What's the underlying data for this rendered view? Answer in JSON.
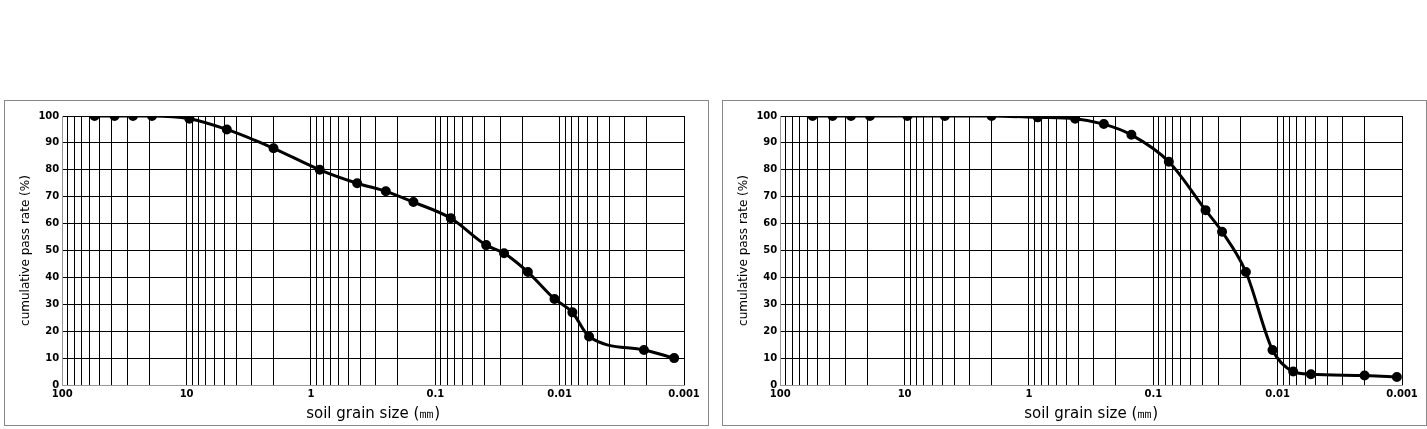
{
  "chart_data": [
    {
      "type": "line",
      "xlabel": "soil grain size (㎜)",
      "ylabel": "cumulative pass rate (%)",
      "log": "x",
      "grid": true,
      "legend": false,
      "marker": "circle",
      "line_style": "solid",
      "xlim": [
        100,
        0.001
      ],
      "ylim": [
        0,
        100
      ],
      "xticks": [
        100,
        {
          "value": 90,
          "label": null
        },
        {
          "value": 80,
          "label": null
        },
        {
          "value": 70,
          "label": null
        },
        {
          "value": 60,
          "label": null
        },
        {
          "value": 50,
          "label": null
        },
        {
          "value": 40,
          "label": null
        },
        {
          "value": 30,
          "label": null
        },
        {
          "value": 20,
          "label": null
        },
        10,
        {
          "value": 9,
          "label": null
        },
        {
          "value": 8,
          "label": null
        },
        {
          "value": 7,
          "label": null
        },
        {
          "value": 6,
          "label": null
        },
        {
          "value": 5,
          "label": null
        },
        {
          "value": 4,
          "label": null
        },
        {
          "value": 3,
          "label": null
        },
        {
          "value": 2,
          "label": null
        },
        1,
        {
          "value": 0.9,
          "label": null
        },
        {
          "value": 0.8,
          "label": null
        },
        {
          "value": 0.7,
          "label": null
        },
        {
          "value": 0.6,
          "label": null
        },
        {
          "value": 0.5,
          "label": null
        },
        {
          "value": 0.4,
          "label": null
        },
        {
          "value": 0.3,
          "label": null
        },
        {
          "value": 0.2,
          "label": null
        },
        0.1,
        {
          "value": 0.09,
          "label": null
        },
        {
          "value": 0.08,
          "label": null
        },
        {
          "value": 0.07,
          "label": null
        },
        {
          "value": 0.06,
          "label": null
        },
        {
          "value": 0.05,
          "label": null
        },
        {
          "value": 0.04,
          "label": null
        },
        {
          "value": 0.03,
          "label": null
        },
        {
          "value": 0.02,
          "label": null
        },
        0.01,
        {
          "value": 0.009,
          "label": null
        },
        {
          "value": 0.008,
          "label": null
        },
        {
          "value": 0.007,
          "label": null
        },
        {
          "value": 0.006,
          "label": null
        },
        {
          "value": 0.005,
          "label": null
        },
        {
          "value": 0.004,
          "label": null
        },
        {
          "value": 0.003,
          "label": null
        },
        {
          "value": 0.002,
          "label": null
        },
        0.001
      ],
      "yticks": [
        0,
        10,
        20,
        30,
        40,
        50,
        60,
        70,
        80,
        90,
        100
      ],
      "series": [
        {
          "color": "#000000",
          "x": [
            55,
            38,
            27,
            19,
            9.5,
            4.75,
            2,
            0.85,
            0.425,
            0.25,
            0.15,
            0.075,
            0.039,
            0.028,
            0.018,
            0.011,
            0.0079,
            0.0058,
            0.0021,
            0.0012
          ],
          "values": [
            100,
            100,
            100,
            100,
            99,
            95,
            88,
            80,
            75,
            72,
            68,
            62,
            52,
            49,
            42,
            32,
            27,
            18,
            13,
            10
          ]
        }
      ]
    },
    {
      "type": "line",
      "xlabel": "soil grain size (㎜)",
      "ylabel": "cumulative pass rate (%)",
      "log": "x",
      "grid": true,
      "legend": false,
      "marker": "circle",
      "line_style": "solid",
      "xlim": [
        100,
        0.001
      ],
      "ylim": [
        0,
        100
      ],
      "xticks": [
        100,
        {
          "value": 90,
          "label": null
        },
        {
          "value": 80,
          "label": null
        },
        {
          "value": 70,
          "label": null
        },
        {
          "value": 60,
          "label": null
        },
        {
          "value": 50,
          "label": null
        },
        {
          "value": 40,
          "label": null
        },
        {
          "value": 30,
          "label": null
        },
        {
          "value": 20,
          "label": null
        },
        10,
        {
          "value": 9,
          "label": null
        },
        {
          "value": 8,
          "label": null
        },
        {
          "value": 7,
          "label": null
        },
        {
          "value": 6,
          "label": null
        },
        {
          "value": 5,
          "label": null
        },
        {
          "value": 4,
          "label": null
        },
        {
          "value": 3,
          "label": null
        },
        {
          "value": 2,
          "label": null
        },
        1,
        {
          "value": 0.9,
          "label": null
        },
        {
          "value": 0.8,
          "label": null
        },
        {
          "value": 0.7,
          "label": null
        },
        {
          "value": 0.6,
          "label": null
        },
        {
          "value": 0.5,
          "label": null
        },
        {
          "value": 0.4,
          "label": null
        },
        {
          "value": 0.3,
          "label": null
        },
        {
          "value": 0.2,
          "label": null
        },
        0.1,
        {
          "value": 0.09,
          "label": null
        },
        {
          "value": 0.08,
          "label": null
        },
        {
          "value": 0.07,
          "label": null
        },
        {
          "value": 0.06,
          "label": null
        },
        {
          "value": 0.05,
          "label": null
        },
        {
          "value": 0.04,
          "label": null
        },
        {
          "value": 0.03,
          "label": null
        },
        {
          "value": 0.02,
          "label": null
        },
        0.01,
        {
          "value": 0.009,
          "label": null
        },
        {
          "value": 0.008,
          "label": null
        },
        {
          "value": 0.007,
          "label": null
        },
        {
          "value": 0.006,
          "label": null
        },
        {
          "value": 0.005,
          "label": null
        },
        {
          "value": 0.004,
          "label": null
        },
        {
          "value": 0.003,
          "label": null
        },
        {
          "value": 0.002,
          "label": null
        },
        0.001
      ],
      "yticks": [
        0,
        10,
        20,
        30,
        40,
        50,
        60,
        70,
        80,
        90,
        100
      ],
      "series": [
        {
          "color": "#000000",
          "x": [
            55,
            38,
            27,
            19,
            9.5,
            4.75,
            2,
            0.85,
            0.425,
            0.25,
            0.15,
            0.075,
            0.038,
            0.028,
            0.018,
            0.011,
            0.0075,
            0.0054,
            0.002,
            0.0011
          ],
          "values": [
            100,
            100,
            100,
            100,
            100,
            100,
            100,
            99.5,
            99,
            97,
            93,
            83,
            65,
            57,
            42,
            13,
            5,
            4,
            3.5,
            3
          ]
        }
      ]
    }
  ]
}
